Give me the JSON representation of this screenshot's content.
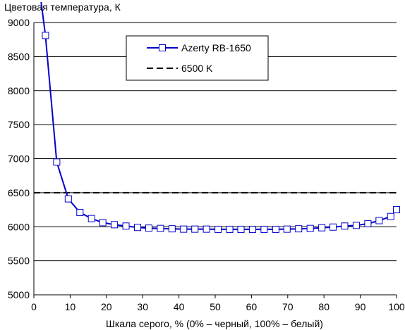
{
  "chart_data": {
    "type": "line",
    "title": "",
    "ylabel": "Цветовая температура, К",
    "xlabel": "Шкала серого, % (0% – черный, 100% – белый)",
    "xlim": [
      0,
      100
    ],
    "ylim": [
      5000,
      9000
    ],
    "xticks": [
      "0",
      "10",
      "20",
      "30",
      "40",
      "50",
      "60",
      "70",
      "80",
      "90",
      "100"
    ],
    "yticks": [
      "5000",
      "5500",
      "6000",
      "6500",
      "7000",
      "7500",
      "8000",
      "8500",
      "9000"
    ],
    "grid": "horizontal",
    "legend_position": "top-center",
    "series": [
      {
        "name": "Azerty RB-1650",
        "color": "#0000cc",
        "marker": "square",
        "x": [
          3.2,
          6.3,
          9.5,
          12.7,
          15.9,
          19.0,
          22.2,
          25.4,
          28.6,
          31.7,
          34.9,
          38.1,
          41.3,
          44.4,
          47.6,
          50.8,
          54.0,
          57.1,
          60.3,
          63.5,
          66.7,
          69.8,
          73.0,
          76.2,
          79.4,
          82.5,
          85.7,
          88.9,
          92.1,
          95.2,
          98.4,
          100
        ],
        "values": [
          8810,
          6950,
          6410,
          6210,
          6120,
          6060,
          6030,
          6010,
          5990,
          5980,
          5975,
          5970,
          5965,
          5965,
          5965,
          5962,
          5962,
          5962,
          5962,
          5962,
          5962,
          5965,
          5970,
          5975,
          5985,
          5995,
          6010,
          6020,
          6045,
          6090,
          6150,
          6250
        ]
      },
      {
        "name": "6500 K",
        "color": "#000000",
        "style": "dashed",
        "x": [
          0,
          100
        ],
        "values": [
          6500,
          6500
        ]
      }
    ]
  }
}
